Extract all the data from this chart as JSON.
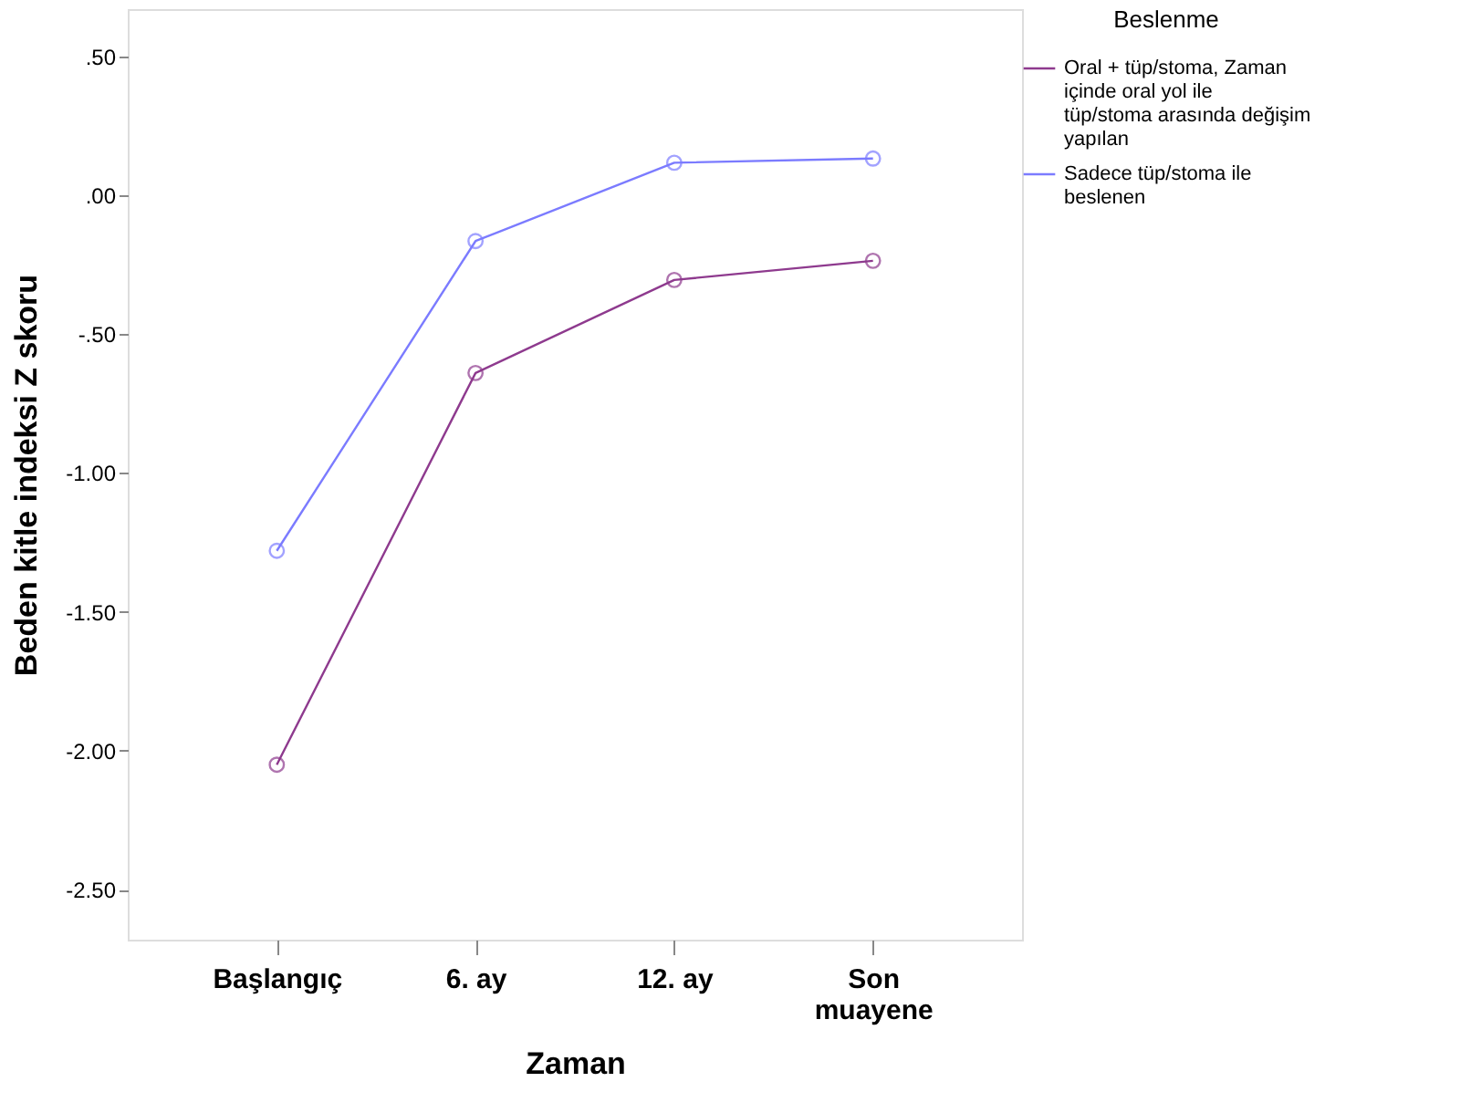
{
  "chart_data": {
    "type": "line",
    "xlabel": "Zaman",
    "ylabel": "Beden kitle indeksi Z skoru",
    "legend_title": "Beslenme",
    "categories": [
      "Başlangıç",
      "6. ay",
      "12. ay",
      "Son muayene"
    ],
    "series": [
      {
        "name": "Oral + tüp/stoma, Zaman içinde oral yol ile tüp/stoma arasında değişim yapılan",
        "color": "#8e3a8e",
        "values": [
          -2.05,
          -0.64,
          -0.305,
          -0.236
        ]
      },
      {
        "name": "Sadece tüp/stoma ile beslenen",
        "color": "#7b7bff",
        "values": [
          -1.28,
          -0.165,
          0.117,
          0.132
        ]
      }
    ],
    "ylim": [
      -2.68,
      0.67
    ],
    "yticks": [
      {
        "value": 0.5,
        "label": ".50"
      },
      {
        "value": 0,
        "label": ".00"
      },
      {
        "value": -0.5,
        "label": "-.50"
      },
      {
        "value": -1,
        "label": "-1.00"
      },
      {
        "value": -1.5,
        "label": "-1.50"
      },
      {
        "value": -2,
        "label": "-2.00"
      },
      {
        "value": -2.5,
        "label": "-2.50"
      }
    ],
    "grid": false,
    "legend": "top right",
    "marker": "circle",
    "line_style": "solid"
  }
}
